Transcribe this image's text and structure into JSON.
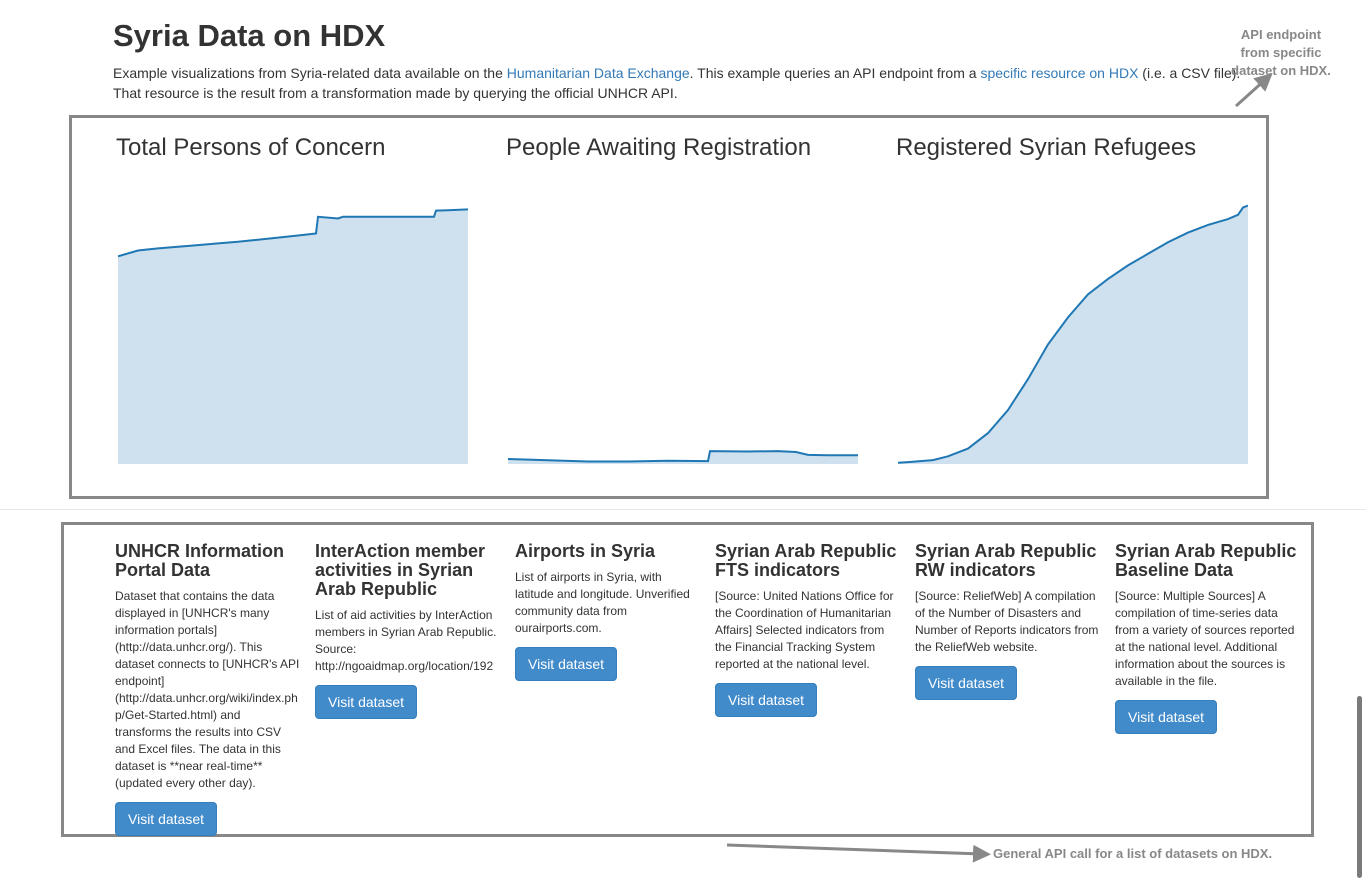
{
  "page": {
    "title": "Syria Data on HDX",
    "intro": {
      "text1": "Example visualizations from Syria-related data available on the ",
      "link1": "Humanitarian Data Exchange",
      "text2": ". This example queries an API endpoint from a ",
      "link2": "specific resource on HDX",
      "text3": " (i.e. a CSV file). That resource is the result from a transformation made by querying the official UNHCR API."
    }
  },
  "annotations": {
    "top": "API endpoint from specific dataset on HDX.",
    "bottom": "General API call for a list of datasets on HDX."
  },
  "colors": {
    "line": "#1f77b4",
    "area": "#cfe1ef",
    "button": "#428bca",
    "box_border": "#888888"
  },
  "chart_data": [
    {
      "type": "area",
      "title": "Total Persons of Concern",
      "x": [
        0,
        20,
        40,
        60,
        80,
        100,
        120,
        140,
        160,
        180,
        198,
        200,
        220,
        225,
        240,
        260,
        280,
        300,
        316,
        318,
        330,
        350
      ],
      "values": [
        50,
        51.4,
        51.9,
        52.3,
        52.7,
        53.1,
        53.5,
        54,
        54.5,
        55,
        55.5,
        59.5,
        59.1,
        59.5,
        59.5,
        59.5,
        59.5,
        59.5,
        59.5,
        61,
        61.1,
        61.3
      ],
      "ylim": [
        0,
        65
      ],
      "xlabel": "",
      "ylabel": ""
    },
    {
      "type": "area",
      "title": "People Awaiting Registration",
      "x": [
        0,
        40,
        80,
        120,
        160,
        200,
        202,
        240,
        270,
        288,
        300,
        320,
        350
      ],
      "values": [
        1.2,
        0.9,
        0.6,
        0.6,
        0.8,
        0.7,
        3.1,
        3.0,
        3.1,
        2.9,
        2.2,
        2.1,
        2.1
      ],
      "ylim": [
        0,
        65
      ],
      "xlabel": "",
      "ylabel": ""
    },
    {
      "type": "area",
      "title": "Registered Syrian Refugees",
      "x": [
        0,
        10,
        35,
        50,
        70,
        90,
        110,
        130,
        150,
        170,
        190,
        210,
        230,
        250,
        270,
        290,
        310,
        330,
        340,
        345,
        350
      ],
      "values": [
        0.3,
        0.5,
        1,
        2,
        4,
        8,
        14,
        22,
        31,
        38,
        44,
        48,
        51.5,
        54.5,
        57.5,
        60,
        62,
        63.5,
        64.6,
        66.5,
        67
      ],
      "ylim": [
        0,
        70
      ],
      "xlabel": "",
      "ylabel": ""
    }
  ],
  "datasets": [
    {
      "title": "UNHCR Information Portal Data",
      "description": "Dataset that contains the data displayed in [UNHCR's many information portals] (http://data.unhcr.org/). This dataset connects to [UNHCR's API endpoint] (http://data.unhcr.org/wiki/index.php/Get-Started.html) and transforms the results into CSV and Excel files. The data in this dataset is **near real-time** (updated every other day).",
      "button": "Visit dataset"
    },
    {
      "title": "InterAction member activities in Syrian Arab Republic",
      "description": "List of aid activities by InterAction members in Syrian Arab Republic. Source: http://ngoaidmap.org/location/192",
      "button": "Visit dataset"
    },
    {
      "title": "Airports in Syria",
      "description": "List of airports in Syria, with latitude and longitude. Unverified community data from ourairports.com.",
      "button": "Visit dataset"
    },
    {
      "title": "Syrian Arab Republic FTS indicators",
      "description": "[Source: United Nations Office for the Coordination of Humanitarian Affairs] Selected indicators from the Financial Tracking System reported at the national level.",
      "button": "Visit dataset"
    },
    {
      "title": "Syrian Arab Republic RW indicators",
      "description": "[Source: ReliefWeb] A compilation of the Number of Disasters and Number of Reports indicators from the ReliefWeb website.",
      "button": "Visit dataset"
    },
    {
      "title": "Syrian Arab Republic Baseline Data",
      "description": "[Source: Multiple Sources] A compilation of time-series data from a variety of sources reported at the national level. Additional information about the sources is available in the file.",
      "button": "Visit dataset"
    }
  ]
}
